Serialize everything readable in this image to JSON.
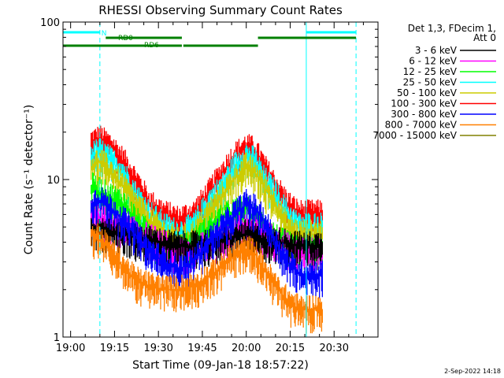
{
  "chart_data": {
    "type": "line",
    "title": "RHESSI Observing Summary Count Rates",
    "xlabel": "Start Time (09-Jan-18 18:57:22)",
    "ylabel": "Count Rate (s⁻¹ detector⁻¹)",
    "yscale": "log",
    "ylim": [
      1,
      100
    ],
    "y_ticks": [
      {
        "value": 1,
        "label": "1"
      },
      {
        "value": 10,
        "label": "10"
      },
      {
        "value": 100,
        "label": "100"
      }
    ],
    "x_ticks": [
      "19:00",
      "19:15",
      "19:30",
      "19:45",
      "20:00",
      "20:15",
      "20:30"
    ],
    "x_tick_minutes": [
      0,
      15,
      30,
      45,
      60,
      75,
      90
    ],
    "xlim_minutes": [
      -2.6,
      105
    ],
    "legend": {
      "position": "right",
      "title_lines": [
        "Det 1,3, FDecim 1,",
        "Att 0"
      ],
      "entries": [
        {
          "name": "3 - 6 keV",
          "color": "#000000"
        },
        {
          "name": "6 - 12 keV",
          "color": "#ff00ff"
        },
        {
          "name": "12 - 25 keV",
          "color": "#00ff00"
        },
        {
          "name": "25 - 50 keV",
          "color": "#00ffff"
        },
        {
          "name": "50 - 100 keV",
          "color": "#cccc00"
        },
        {
          "name": "100 - 300 keV",
          "color": "#ff0000"
        },
        {
          "name": "300 - 800 keV",
          "color": "#0000ff"
        },
        {
          "name": "800 - 7000 keV",
          "color": "#ff8000"
        },
        {
          "name": "7000 - 15000 keV",
          "color": "#808000"
        }
      ]
    },
    "series": [
      {
        "name": "100 - 300 keV",
        "color": "#ff0000",
        "x": [
          7,
          10,
          14,
          18,
          22,
          27,
          32,
          37,
          42,
          47,
          52,
          56,
          60,
          63,
          66,
          70,
          74,
          78,
          82,
          86
        ],
        "y": [
          17,
          18,
          16,
          13,
          10,
          7,
          6,
          5.5,
          6,
          8,
          11,
          14,
          16,
          15,
          12,
          9,
          7,
          6,
          6,
          6
        ]
      },
      {
        "name": "25 - 50 keV",
        "color": "#00ffff",
        "x": [
          7,
          10,
          14,
          18,
          22,
          27,
          32,
          37,
          42,
          47,
          52,
          56,
          60,
          63,
          66,
          70,
          74,
          78,
          82,
          86
        ],
        "y": [
          14,
          15,
          13,
          11,
          8,
          6,
          5,
          4.5,
          5,
          7,
          9,
          12,
          14,
          13,
          10,
          8,
          6,
          5,
          5,
          5
        ]
      },
      {
        "name": "50 - 100 keV",
        "color": "#cccc00",
        "x": [
          7,
          10,
          14,
          18,
          22,
          27,
          32,
          37,
          42,
          47,
          52,
          56,
          60,
          63,
          66,
          70,
          74,
          78,
          82,
          86
        ],
        "y": [
          12,
          13,
          11,
          9,
          7,
          5.5,
          4.5,
          4,
          4.5,
          6,
          8,
          10,
          12,
          11,
          9,
          7,
          5,
          4.5,
          4.5,
          4.5
        ]
      },
      {
        "name": "12 - 25 keV",
        "color": "#00ff00",
        "x": [
          7,
          12,
          18,
          24,
          30,
          36,
          42,
          48,
          54,
          60,
          66,
          72,
          78,
          86
        ],
        "y": [
          9,
          8,
          7,
          5,
          4,
          3.5,
          4,
          5,
          6,
          6.5,
          5,
          4,
          3.5,
          3.5
        ]
      },
      {
        "name": "6 - 12 keV",
        "color": "#ff00ff",
        "x": [
          7,
          12,
          18,
          24,
          30,
          36,
          42,
          48,
          54,
          60,
          66,
          72,
          78,
          86
        ],
        "y": [
          6,
          5.5,
          5,
          4.5,
          4,
          3.5,
          3.5,
          4,
          4.5,
          5,
          4.5,
          4,
          3.5,
          3.5
        ]
      },
      {
        "name": "3 - 6 keV",
        "color": "#000000",
        "x": [
          7,
          12,
          18,
          24,
          30,
          36,
          42,
          48,
          54,
          60,
          66,
          72,
          78,
          86
        ],
        "y": [
          5,
          4.8,
          4.5,
          4.2,
          4,
          3.8,
          3.8,
          4,
          4.2,
          4.5,
          4.2,
          4,
          3.8,
          3.8
        ]
      },
      {
        "name": "300 - 800 keV",
        "color": "#0000ff",
        "x": [
          7,
          10,
          14,
          18,
          22,
          27,
          32,
          37,
          42,
          47,
          52,
          56,
          60,
          63,
          66,
          70,
          74,
          78,
          82,
          86
        ],
        "y": [
          7,
          7.5,
          6.5,
          5.5,
          4.5,
          3.5,
          3,
          2.7,
          3,
          4,
          5,
          6,
          7,
          6.5,
          5.5,
          4,
          3,
          2.5,
          2.5,
          2.5
        ]
      },
      {
        "name": "800 - 7000 keV",
        "color": "#ff8000",
        "x": [
          7,
          10,
          14,
          18,
          22,
          27,
          32,
          37,
          42,
          47,
          52,
          56,
          60,
          63,
          66,
          70,
          74,
          78,
          82,
          86
        ],
        "y": [
          4.5,
          4.2,
          3.5,
          2.8,
          2.3,
          2.1,
          2.0,
          2.0,
          2.1,
          2.4,
          2.8,
          3.3,
          3.6,
          3.4,
          2.7,
          2.1,
          1.7,
          1.5,
          1.5,
          1.5
        ]
      }
    ],
    "markers": {
      "vlines_solid": [
        {
          "x": -2.6,
          "color": "#00ffff"
        },
        {
          "x": 80.5,
          "color": "#00ffff"
        }
      ],
      "vlines_dashed": [
        {
          "x": 10,
          "color": "#00ffff"
        },
        {
          "x": 97.5,
          "color": "#00ffff"
        }
      ],
      "bars": [
        {
          "label": "",
          "color": "#00ffff",
          "level": "top",
          "segments": [
            [
              -2.6,
              10
            ],
            [
              80.5,
              97.5
            ]
          ]
        },
        {
          "label": "RD0",
          "color": "#008000",
          "level": "middle",
          "segments": [
            [
              12,
              38
            ],
            [
              64,
              97.5
            ]
          ]
        },
        {
          "label": "RD6",
          "color": "#008000",
          "level": "bottom",
          "segments": [
            [
              -2.6,
              38
            ],
            [
              38.5,
              64
            ]
          ]
        }
      ],
      "texts": [
        {
          "text": "N",
          "color": "#00ffff",
          "x": 10.5
        }
      ]
    },
    "grid": false
  },
  "footer": {
    "timestamp": "2-Sep-2022 14:18"
  }
}
